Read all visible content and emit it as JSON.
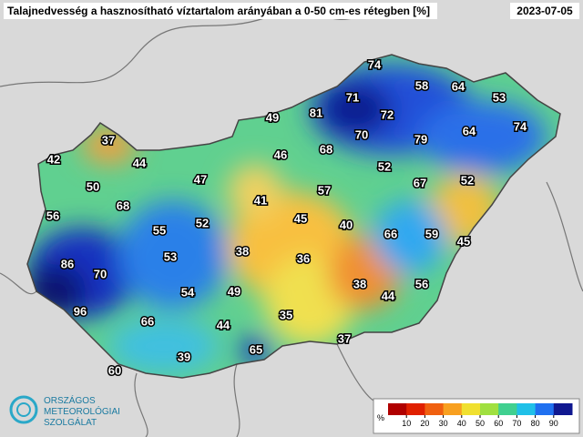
{
  "header": {
    "title": "Talajnedvesség a hasznosítható víztartalom arányában a 0-50 cm-es rétegben [%]",
    "date": "2023-07-05"
  },
  "map": {
    "values": [
      74,
      58,
      64,
      53,
      71,
      81,
      72,
      49,
      74,
      70,
      79,
      64,
      68,
      37,
      46,
      42,
      44,
      52,
      47,
      50,
      67,
      52,
      57,
      41,
      68,
      56,
      45,
      52,
      40,
      55,
      66,
      59,
      45,
      38,
      53,
      36,
      86,
      70,
      38,
      44,
      56,
      54,
      49,
      96,
      66,
      35,
      44,
      37,
      65,
      39,
      60
    ]
  },
  "colorbar": {
    "unit": "%",
    "ticks": [
      10,
      20,
      30,
      40,
      50,
      60,
      70,
      80,
      90
    ],
    "colors": [
      "#b00000",
      "#e02000",
      "#f06010",
      "#f8a020",
      "#f0e030",
      "#a0e040",
      "#40d090",
      "#20c0e8",
      "#2070f0",
      "#101890"
    ]
  },
  "logo": [
    "ORSZÁGOS",
    "METEOROLÓGIAI",
    "SZOLGÁLAT"
  ]
}
